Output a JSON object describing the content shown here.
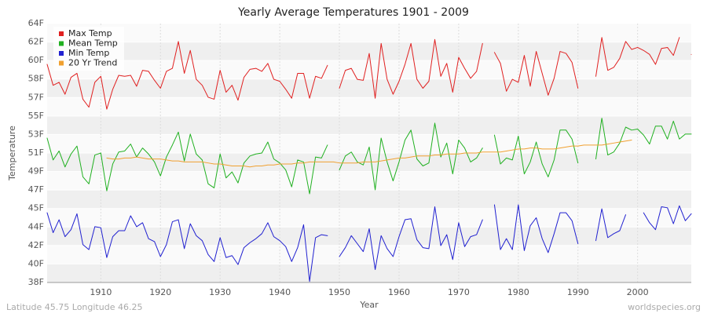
{
  "chart_data": {
    "type": "line",
    "title": "Yearly Average Temperatures 1901 - 2009",
    "x_label": "Year",
    "y_label": "Temperature",
    "footer_left": "Latitude 45.75 Longitude 46.25",
    "footer_right": "worldspecies.org",
    "x": [
      1901,
      1902,
      1903,
      1904,
      1905,
      1906,
      1907,
      1908,
      1909,
      1910,
      1911,
      1912,
      1913,
      1914,
      1915,
      1916,
      1917,
      1918,
      1919,
      1920,
      1921,
      1922,
      1923,
      1924,
      1925,
      1926,
      1927,
      1928,
      1929,
      1930,
      1931,
      1932,
      1933,
      1934,
      1935,
      1936,
      1937,
      1938,
      1939,
      1940,
      1941,
      1942,
      1943,
      1944,
      1945,
      1946,
      1947,
      1948,
      1949,
      1950,
      1951,
      1952,
      1953,
      1954,
      1955,
      1956,
      1957,
      1958,
      1959,
      1960,
      1961,
      1962,
      1963,
      1964,
      1965,
      1966,
      1967,
      1968,
      1969,
      1970,
      1971,
      1972,
      1973,
      1974,
      1975,
      1976,
      1977,
      1978,
      1979,
      1980,
      1981,
      1982,
      1983,
      1984,
      1985,
      1986,
      1987,
      1988,
      1989,
      1990,
      1991,
      1992,
      1993,
      1994,
      1995,
      1996,
      1997,
      1998,
      1999,
      2000,
      2001,
      2002,
      2003,
      2004,
      2005,
      2006,
      2007,
      2008,
      2009
    ],
    "series": [
      {
        "name": "Max Temp",
        "color": "#e02020",
        "values": [
          59.9,
          57.8,
          58.1,
          56.9,
          58.6,
          59.0,
          56.4,
          55.6,
          58.1,
          58.7,
          55.4,
          57.4,
          58.8,
          58.7,
          58.8,
          57.7,
          59.3,
          59.2,
          58.3,
          57.5,
          59.2,
          59.5,
          62.2,
          59.0,
          61.3,
          58.4,
          57.8,
          56.6,
          56.4,
          59.3,
          57.1,
          57.8,
          56.3,
          58.6,
          59.4,
          59.5,
          59.2,
          60.0,
          58.4,
          58.2,
          57.4,
          56.5,
          59.0,
          59.0,
          56.5,
          58.7,
          58.5,
          59.8,
          null,
          57.5,
          59.3,
          59.5,
          58.4,
          58.3,
          61.0,
          56.5,
          62.0,
          58.4,
          56.9,
          58.2,
          59.9,
          62.0,
          58.4,
          57.5,
          58.2,
          62.4,
          58.7,
          60.0,
          57.1,
          60.6,
          59.5,
          58.5,
          59.2,
          62.0,
          null,
          61.1,
          60.0,
          57.2,
          58.4,
          58.1,
          60.8,
          57.7,
          61.2,
          59.0,
          56.8,
          58.5,
          61.2,
          61.0,
          60.1,
          57.5,
          null,
          null,
          58.7,
          62.6,
          59.3,
          59.6,
          60.5,
          62.2,
          61.4,
          61.6,
          61.3,
          60.9,
          59.9,
          61.5,
          61.6,
          60.8,
          62.6,
          null,
          60.9
        ]
      },
      {
        "name": "Mean Temp",
        "color": "#20b020",
        "values": [
          52.5,
          50.3,
          51.2,
          49.6,
          50.9,
          51.7,
          48.6,
          47.9,
          50.8,
          51.0,
          47.2,
          49.9,
          51.1,
          51.2,
          51.9,
          50.6,
          51.5,
          50.9,
          50.1,
          48.7,
          50.6,
          51.8,
          53.1,
          50.2,
          52.9,
          50.9,
          50.3,
          47.9,
          47.5,
          50.9,
          48.5,
          49.1,
          48.0,
          50.0,
          50.7,
          50.9,
          51.0,
          52.1,
          50.4,
          50.0,
          49.3,
          47.6,
          50.3,
          50.1,
          46.9,
          50.6,
          50.5,
          51.8,
          null,
          49.3,
          50.7,
          51.1,
          50.1,
          49.8,
          51.6,
          47.3,
          52.5,
          50.1,
          48.2,
          50.1,
          52.3,
          53.3,
          50.4,
          49.7,
          50.0,
          54.0,
          50.6,
          52.0,
          48.9,
          52.3,
          51.5,
          50.1,
          50.5,
          51.5,
          null,
          52.8,
          49.9,
          50.5,
          50.3,
          52.7,
          48.9,
          50.1,
          52.1,
          49.9,
          48.6,
          50.3,
          53.3,
          53.3,
          52.4,
          50.0,
          null,
          null,
          50.4,
          54.5,
          50.8,
          51.1,
          52.0,
          53.6,
          53.3,
          53.4,
          52.8,
          51.9,
          53.7,
          53.7,
          52.4,
          54.2,
          52.4,
          52.9,
          52.9
        ]
      },
      {
        "name": "Min Temp",
        "color": "#2020d0",
        "values": [
          45.0,
          43.0,
          44.3,
          42.6,
          43.3,
          44.9,
          41.8,
          41.3,
          43.6,
          43.5,
          40.5,
          42.6,
          43.2,
          43.2,
          44.7,
          43.6,
          44.0,
          42.4,
          42.1,
          40.6,
          41.8,
          44.1,
          44.3,
          41.4,
          43.9,
          42.7,
          42.2,
          40.8,
          40.1,
          42.5,
          40.5,
          40.7,
          39.8,
          41.5,
          42.0,
          42.4,
          42.9,
          44.0,
          42.6,
          42.2,
          41.6,
          40.1,
          41.5,
          43.8,
          38.1,
          42.5,
          42.8,
          42.7,
          null,
          40.6,
          41.5,
          42.7,
          41.9,
          41.1,
          43.4,
          39.3,
          42.7,
          41.4,
          40.6,
          42.6,
          44.3,
          44.4,
          42.3,
          41.5,
          41.4,
          45.6,
          41.7,
          42.8,
          40.3,
          44.0,
          41.6,
          42.6,
          42.8,
          44.3,
          null,
          45.8,
          41.3,
          42.4,
          41.3,
          45.8,
          41.2,
          43.7,
          44.5,
          42.4,
          41.0,
          42.9,
          45.0,
          45.0,
          44.2,
          41.9,
          null,
          null,
          42.2,
          45.4,
          42.5,
          42.9,
          43.2,
          44.8,
          null,
          null,
          45.0,
          44.0,
          43.3,
          45.6,
          45.5,
          43.9,
          45.7,
          44.2,
          44.9
        ]
      },
      {
        "name": "20 Yr Trend",
        "color": "#f0a030",
        "values": [
          null,
          null,
          null,
          null,
          null,
          null,
          null,
          null,
          null,
          null,
          50.5,
          50.4,
          50.4,
          50.5,
          50.5,
          50.6,
          50.5,
          50.4,
          50.4,
          50.4,
          50.3,
          50.2,
          50.2,
          50.1,
          50.1,
          50.1,
          50.1,
          50.0,
          49.9,
          49.9,
          49.8,
          49.7,
          49.7,
          49.7,
          49.6,
          49.7,
          49.7,
          49.8,
          49.8,
          49.9,
          49.9,
          49.9,
          50.0,
          50.0,
          50.1,
          50.1,
          50.1,
          50.1,
          50.1,
          50.0,
          50.0,
          50.0,
          50.0,
          50.1,
          50.1,
          50.1,
          50.2,
          50.3,
          50.4,
          50.5,
          50.5,
          50.6,
          50.7,
          50.7,
          50.7,
          50.8,
          50.8,
          50.9,
          50.9,
          50.9,
          51.0,
          51.0,
          51.0,
          51.1,
          51.1,
          51.1,
          51.1,
          51.2,
          51.3,
          51.4,
          51.4,
          51.5,
          51.5,
          51.4,
          51.4,
          51.4,
          51.5,
          51.6,
          51.7,
          51.7,
          51.8,
          51.8,
          51.8,
          51.8,
          51.9,
          52.0,
          52.1,
          52.2,
          52.3,
          null,
          null,
          null,
          null,
          null,
          null,
          null,
          null,
          null,
          null
        ]
      }
    ],
    "xlim": [
      1901,
      2009
    ],
    "xticks": [
      1910,
      1920,
      1930,
      1940,
      1950,
      1960,
      1970,
      1980,
      1990,
      2000
    ],
    "ylim": [
      38,
      64
    ],
    "yticks": [
      {
        "value": 38,
        "label": "38F"
      },
      {
        "value": 39.86,
        "label": "40F"
      },
      {
        "value": 41.71,
        "label": "42F"
      },
      {
        "value": 43.57,
        "label": "44F"
      },
      {
        "value": 45.43,
        "label": "45F"
      },
      {
        "value": 47.29,
        "label": "47F"
      },
      {
        "value": 49.14,
        "label": "49F"
      },
      {
        "value": 51,
        "label": "51F"
      },
      {
        "value": 52.86,
        "label": "53F"
      },
      {
        "value": 54.71,
        "label": "55F"
      },
      {
        "value": 56.57,
        "label": "57F"
      },
      {
        "value": 58.43,
        "label": "58F"
      },
      {
        "value": 60.29,
        "label": "60F"
      },
      {
        "value": 62.14,
        "label": "62F"
      },
      {
        "value": 64,
        "label": "64F"
      }
    ],
    "grid": true,
    "legend": "top-left"
  }
}
